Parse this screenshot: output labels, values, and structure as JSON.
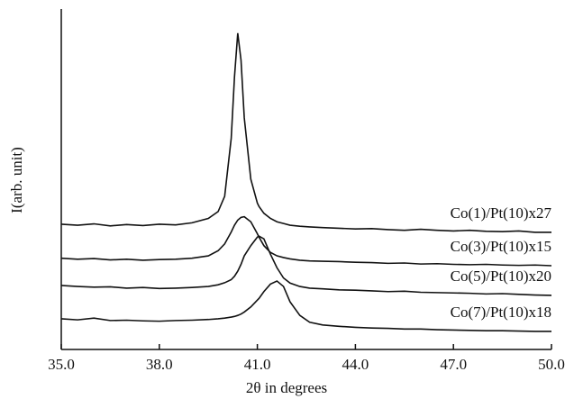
{
  "chart_data": {
    "type": "line",
    "xlabel": "2θ in degrees",
    "ylabel": "I(arb. unit)",
    "x": [
      35.0,
      35.5,
      36.0,
      36.5,
      37.0,
      37.5,
      38.0,
      38.5,
      39.0,
      39.5,
      39.8,
      40.0,
      40.2,
      40.3,
      40.4,
      40.5,
      40.6,
      40.8,
      41.0,
      41.05,
      41.2,
      41.4,
      41.6,
      41.8,
      42.0,
      42.3,
      42.6,
      43.0,
      43.5,
      44.0,
      44.5,
      45.0,
      45.5,
      46.0,
      46.5,
      47.0,
      47.5,
      48.0,
      48.5,
      49.0,
      49.5,
      50.0
    ],
    "series": [
      {
        "name": "Co(1)/Pt(10)x27",
        "color": "#111111",
        "values": [
          36.8,
          36.5,
          36.9,
          36.3,
          36.7,
          36.4,
          36.8,
          36.6,
          37.2,
          38.5,
          40.5,
          45,
          62,
          80,
          92.9,
          85,
          68,
          50,
          43,
          42,
          40,
          38.5,
          37.5,
          37,
          36.5,
          36.2,
          36,
          35.8,
          35.6,
          35.4,
          35.5,
          35.2,
          35,
          35.3,
          35,
          34.8,
          35,
          34.7,
          34.6,
          34.8,
          34.4,
          34.4
        ]
      },
      {
        "name": "Co(3)/Pt(10)x15",
        "color": "#111111",
        "values": [
          26.8,
          26.5,
          26.7,
          26.3,
          26.5,
          26.2,
          26.4,
          26.5,
          26.8,
          27.5,
          29,
          31,
          34.5,
          36.5,
          38,
          38.8,
          39,
          37.5,
          34,
          33,
          30.5,
          28.5,
          27.5,
          27,
          26.6,
          26.2,
          26,
          25.9,
          25.8,
          25.6,
          25.5,
          25.3,
          25.4,
          25.1,
          25.2,
          25,
          24.9,
          25,
          24.8,
          24.7,
          24.8,
          24.6
        ]
      },
      {
        "name": "Co(5)/Pt(10)x20",
        "color": "#111111",
        "values": [
          18.8,
          18.5,
          18.3,
          18.4,
          18,
          18.2,
          17.9,
          18,
          18.2,
          18.5,
          19,
          19.6,
          20.5,
          21.5,
          23,
          25,
          27.5,
          30.5,
          33,
          33.3,
          32.5,
          28,
          24,
          21,
          19.5,
          18.5,
          18,
          17.8,
          17.5,
          17.4,
          17.2,
          17,
          17.1,
          16.8,
          16.7,
          16.6,
          16.5,
          16.3,
          16.4,
          16.2,
          16,
          15.9
        ]
      },
      {
        "name": "Co(7)/Pt(10)x18",
        "color": "#111111",
        "values": [
          9,
          8.7,
          9.2,
          8.5,
          8.6,
          8.4,
          8.3,
          8.5,
          8.6,
          8.8,
          9,
          9.2,
          9.5,
          9.7,
          10,
          10.4,
          11,
          12.5,
          14.5,
          15,
          17,
          19.2,
          20.1,
          18.5,
          14,
          10,
          8,
          7.2,
          6.8,
          6.5,
          6.3,
          6.2,
          6,
          6,
          5.8,
          5.7,
          5.6,
          5.5,
          5.5,
          5.4,
          5.3,
          5.3
        ]
      }
    ],
    "xlim": [
      35.0,
      50.0
    ],
    "xticks": [
      {
        "value": 35,
        "label": "35.0"
      },
      {
        "value": 38,
        "label": "38.0"
      },
      {
        "value": 41,
        "label": "41.0"
      },
      {
        "value": 44,
        "label": "44.0"
      },
      {
        "value": 47,
        "label": "47.0"
      },
      {
        "value": 50,
        "label": "50.0"
      }
    ],
    "ylim": [
      0,
      100
    ]
  }
}
